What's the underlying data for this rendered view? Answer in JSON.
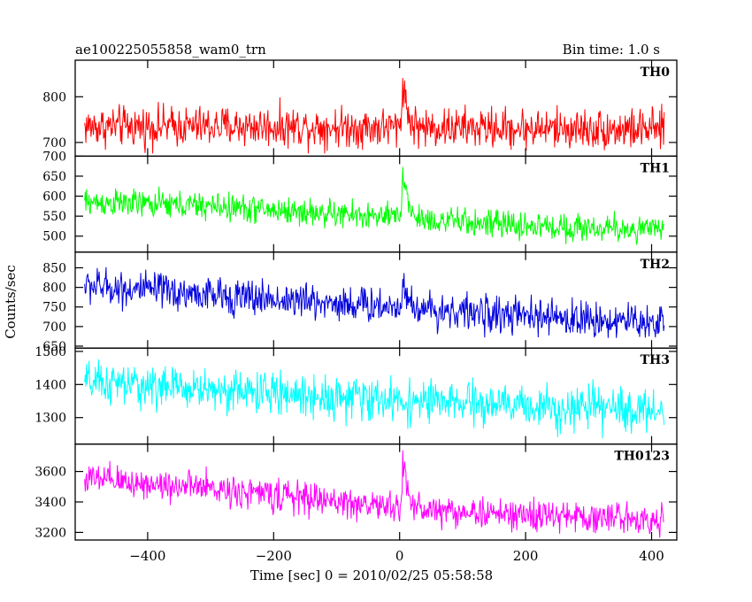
{
  "chart_data": {
    "type": "line",
    "title": "ae100225055858_wam0_trn",
    "subtitle": "Bin time: 1.0 s",
    "xlabel": "Time [sec] 0 = 2010/02/25 05:58:58",
    "ylabel": "Counts/sec",
    "xlim": [
      -515,
      440
    ],
    "x_ticks": [
      -400,
      -200,
      0,
      200,
      400
    ],
    "x_tick_labels": [
      "−400",
      "−200",
      "0",
      "200",
      "400"
    ],
    "x_start": -500,
    "x_end": 420,
    "x_step": 1,
    "series": [
      {
        "name": "TH0",
        "color": "#ff0000",
        "ylim": [
          670,
          880
        ],
        "y_ticks": [
          700,
          800
        ],
        "y_tick_labels": [
          "700",
          "800"
        ],
        "trend": [
          [
            -500,
            735
          ],
          [
            -200,
            735
          ],
          [
            0,
            733
          ],
          [
            420,
            728
          ]
        ],
        "noise_amplitude": 38,
        "burst": {
          "peak": 120,
          "x": 5,
          "decay": 6
        }
      },
      {
        "name": "TH1",
        "color": "#00ff00",
        "ylim": [
          460,
          700
        ],
        "y_ticks": [
          500,
          550,
          600,
          650,
          700
        ],
        "y_tick_labels": [
          "500",
          "550",
          "600",
          "650",
          "700"
        ],
        "trend": [
          [
            -500,
            585
          ],
          [
            -300,
            575
          ],
          [
            0,
            545
          ],
          [
            200,
            525
          ],
          [
            420,
            515
          ]
        ],
        "noise_amplitude": 30,
        "burst": {
          "peak": 140,
          "x": 5,
          "decay": 7
        }
      },
      {
        "name": "TH2",
        "color": "#0000dd",
        "ylim": [
          645,
          890
        ],
        "y_ticks": [
          650,
          700,
          750,
          800,
          850
        ],
        "y_tick_labels": [
          "650",
          "700",
          "750",
          "800",
          "850"
        ],
        "trend": [
          [
            -500,
            805
          ],
          [
            -300,
            780
          ],
          [
            0,
            750
          ],
          [
            200,
            725
          ],
          [
            420,
            710
          ]
        ],
        "noise_amplitude": 40,
        "burst": {
          "peak": 90,
          "x": 5,
          "decay": 6
        }
      },
      {
        "name": "TH3",
        "color": "#00ffff",
        "ylim": [
          1220,
          1510
        ],
        "y_ticks": [
          1300,
          1400,
          1500
        ],
        "y_tick_labels": [
          "1300",
          "1400",
          "1500"
        ],
        "trend": [
          [
            -500,
            1405
          ],
          [
            -300,
            1385
          ],
          [
            0,
            1350
          ],
          [
            200,
            1335
          ],
          [
            420,
            1320
          ]
        ],
        "noise_amplitude": 55,
        "burst": {
          "peak": 0,
          "x": 5,
          "decay": 6
        }
      },
      {
        "name": "TH0123",
        "color": "#ff00ff",
        "ylim": [
          3150,
          3780
        ],
        "y_ticks": [
          3200,
          3400,
          3600
        ],
        "y_tick_labels": [
          "3200",
          "3400",
          "3600"
        ],
        "trend": [
          [
            -500,
            3550
          ],
          [
            -300,
            3490
          ],
          [
            0,
            3360
          ],
          [
            200,
            3310
          ],
          [
            420,
            3290
          ]
        ],
        "noise_amplitude": 90,
        "burst": {
          "peak": 330,
          "x": 5,
          "decay": 7
        }
      }
    ]
  }
}
